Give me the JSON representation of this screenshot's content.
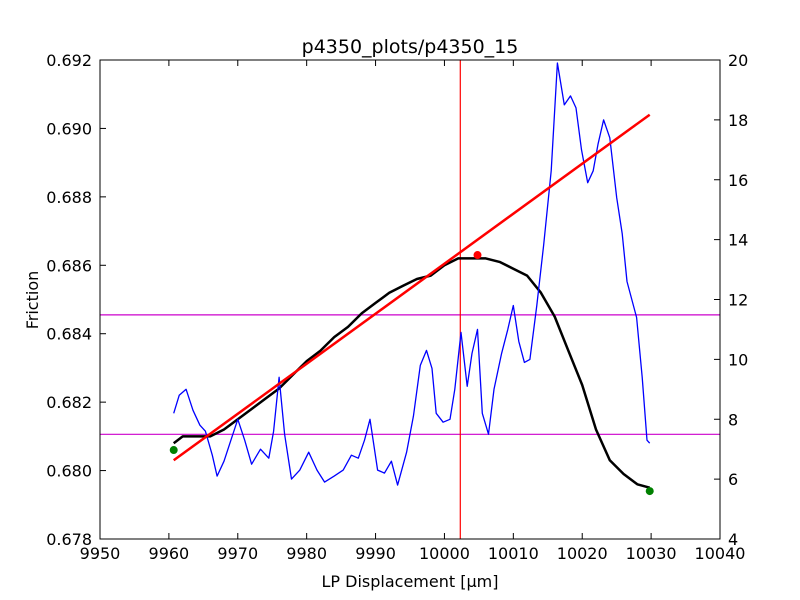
{
  "chart_data": {
    "type": "line",
    "title": "p4350_plots/p4350_15",
    "xlabel": "LP Displacement [μm]",
    "ylabel": "Friction",
    "xlim": [
      9950,
      10040
    ],
    "ylim": [
      0.678,
      0.692
    ],
    "y2lim": [
      4,
      20
    ],
    "x_ticks": [
      "9950",
      "9960",
      "9970",
      "9980",
      "9990",
      "10000",
      "10010",
      "10020",
      "10030",
      "10040"
    ],
    "y_ticks": [
      "0.678",
      "0.680",
      "0.682",
      "0.684",
      "0.686",
      "0.688",
      "0.690",
      "0.692"
    ],
    "y2_ticks": [
      "4",
      "6",
      "8",
      "10",
      "12",
      "14",
      "16",
      "18",
      "20"
    ],
    "grid": false,
    "series": [
      {
        "axis": "left",
        "color": "#000000",
        "x": [
          9960.7,
          9962,
          9964,
          9966,
          9968,
          9970,
          9972,
          9974,
          9976,
          9978,
          9980,
          9982,
          9984,
          9986,
          9988,
          9990,
          9992,
          9994,
          9996,
          9998,
          10000,
          10002,
          10004,
          10006,
          10008,
          10010,
          10012,
          10014,
          10016,
          10018,
          10020,
          10022,
          10024,
          10026,
          10028,
          10029.8
        ],
        "y": [
          0.6808,
          0.681,
          0.681,
          0.681,
          0.6812,
          0.6815,
          0.6818,
          0.6821,
          0.6824,
          0.6828,
          0.6832,
          0.6835,
          0.6839,
          0.6842,
          0.6846,
          0.6849,
          0.6852,
          0.6854,
          0.6856,
          0.6857,
          0.686,
          0.6862,
          0.6862,
          0.6862,
          0.6861,
          0.6859,
          0.6857,
          0.6852,
          0.6845,
          0.6835,
          0.6825,
          0.6812,
          0.6803,
          0.6799,
          0.6796,
          0.6795
        ]
      },
      {
        "axis": "right",
        "color": "#0000ff",
        "x": [
          9960.7,
          9961.5,
          9962.5,
          9963.5,
          9964.5,
          9965.3,
          9966.3,
          9967,
          9968,
          9969,
          9970,
          9971,
          9972,
          9973.3,
          9974.5,
          9975.2,
          9976,
          9976.8,
          9977.8,
          9979,
          9980.3,
          9981.5,
          9982.6,
          9984,
          9985.3,
          9986.5,
          9987.5,
          9988.4,
          9989.2,
          9990.3,
          9991.3,
          9992.3,
          9993.2,
          9994.5,
          9995.5,
          9996.5,
          9997.4,
          9998.2,
          9998.8,
          9999.8,
          10000.8,
          10001.5,
          10002.4,
          10003.3,
          10004,
          10004.8,
          10005.5,
          10006.4,
          10007.2,
          10008.3,
          10009.2,
          10010,
          10010.8,
          10011.6,
          10012.4,
          10013.4,
          10014.4,
          10015.5,
          10016.4,
          10017.4,
          10018.3,
          10019.1,
          10019.9,
          10020.8,
          10021.6,
          10022.3,
          10023.1,
          10024,
          10025,
          10025.8,
          10026.5,
          10027.2,
          10027.9,
          10028.7,
          10029.4,
          10029.8
        ],
        "y": [
          8.2,
          8.8,
          9.0,
          8.3,
          7.8,
          7.6,
          6.8,
          6.1,
          6.6,
          7.3,
          8.0,
          7.3,
          6.5,
          7.0,
          6.7,
          7.6,
          9.4,
          7.5,
          6.0,
          6.3,
          6.9,
          6.3,
          5.9,
          6.1,
          6.3,
          6.8,
          6.7,
          7.3,
          8.0,
          6.3,
          6.2,
          6.6,
          5.8,
          6.9,
          8.1,
          9.8,
          10.3,
          9.7,
          8.2,
          7.9,
          8.0,
          9.0,
          10.9,
          9.1,
          10.2,
          11.0,
          8.2,
          7.5,
          9.0,
          10.2,
          11.0,
          11.8,
          10.6,
          9.9,
          10.0,
          11.8,
          13.8,
          16.3,
          19.9,
          18.5,
          18.8,
          18.4,
          17.0,
          15.9,
          16.3,
          17.2,
          18.0,
          17.4,
          15.4,
          14.2,
          12.6,
          12.0,
          11.4,
          9.4,
          7.3,
          7.2
        ]
      },
      {
        "axis": "left",
        "color": "#ff0000",
        "x": [
          9960.7,
          10029.8
        ],
        "y": [
          0.6803,
          0.6904
        ]
      }
    ],
    "reference_lines": {
      "vertical_x": 10002.3,
      "horizontal_y": [
        0.68455,
        0.68106
      ],
      "vertical_color": "#ff0000",
      "horizontal_color": "#cc00cc"
    },
    "markers": [
      {
        "x": 9960.7,
        "y": 0.6806,
        "color": "#008000"
      },
      {
        "x": 10029.8,
        "y": 0.6794,
        "color": "#008000"
      },
      {
        "x": 10004.8,
        "y": 0.6863,
        "color": "#ff0000"
      }
    ]
  }
}
